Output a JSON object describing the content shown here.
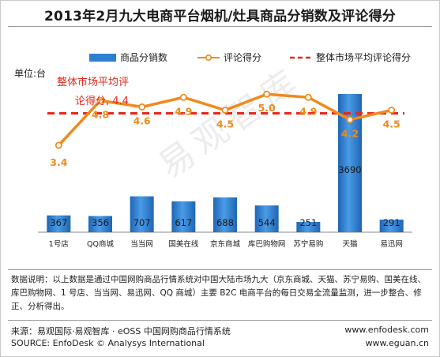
{
  "title": "2013年2月九大电商平台烟机/灶具商品分销数及评论得分",
  "unit_label": "单位:台",
  "legend": {
    "bar": "商品分销数",
    "line": "评论得分",
    "avg": "整体市场平均评论得分"
  },
  "avg_annotation_line1": "整体市场平均评",
  "avg_annotation_line2": "论得分, 4.4",
  "watermark": "易观智库",
  "note": "数据说明：以上数据是通过中国网购商品行情系统对中国大陆市场九大（京东商城、天猫、苏宁易购、国美在线、库巴购物网、1 号店、当当网、易迅网、QQ 商城）主要 B2C 电商平台的每日交易全流量监测，进一步整合、修正、分析得出。",
  "footer": {
    "source_cn": "来源：易观国际·易观智库 · eOSS 中国网购商品行情系统",
    "source_en": "SOURCE: EnfoDesk © Analysys International",
    "url1": "www.enfodesk.com",
    "url2": "www.eguan.cn"
  },
  "colors": {
    "bar": "#2e7fd1",
    "line": "#f08a1c",
    "score_label": "#ef8a18",
    "avg": "#e8261a"
  },
  "chart_data": {
    "type": "bar+line",
    "categories": [
      "1号店",
      "QQ商城",
      "当当网",
      "国美在线",
      "京东商城",
      "库巴购物网",
      "苏宁易购",
      "天猫",
      "易迅网"
    ],
    "series": [
      {
        "name": "商品分销数",
        "type": "bar",
        "values": [
          367,
          356,
          707,
          617,
          688,
          544,
          251,
          3690,
          291
        ]
      },
      {
        "name": "评论得分",
        "type": "line",
        "values": [
          3.4,
          4.8,
          4.6,
          4.9,
          4.5,
          5.0,
          4.9,
          4.2,
          4.5
        ]
      }
    ],
    "reference_line": {
      "name": "整体市场平均评论得分",
      "value": 4.4
    }
  }
}
